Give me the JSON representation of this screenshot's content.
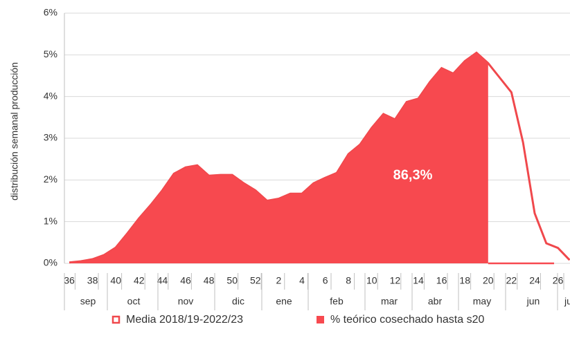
{
  "chart_data": {
    "type": "area",
    "y_label": "distribución semanal producción",
    "categories": [
      "36",
      null,
      "38",
      null,
      "40",
      null,
      "42",
      null,
      "44",
      null,
      "46",
      null,
      "48",
      null,
      "50",
      null,
      "52",
      null,
      "2",
      null,
      "4",
      null,
      "6",
      null,
      "8",
      null,
      "10",
      null,
      "12",
      null,
      "14",
      null,
      "16",
      null,
      "18",
      null,
      "20",
      null,
      "22",
      null,
      "24",
      null,
      "26",
      null
    ],
    "months": [
      "sep",
      "oct",
      "nov",
      "dic",
      "ene",
      "feb",
      "mar",
      "abr",
      "may",
      "jun",
      "jul"
    ],
    "series": [
      {
        "name": "Media 2018/19-2022/23",
        "style": "line",
        "color": "#f0484c",
        "values": [
          0.02,
          0.05,
          0.1,
          0.2,
          0.38,
          0.72,
          1.08,
          1.4,
          1.75,
          2.15,
          2.3,
          2.35,
          2.1,
          2.12,
          2.12,
          1.92,
          1.75,
          1.5,
          1.55,
          1.67,
          1.67,
          1.92,
          2.05,
          2.17,
          2.62,
          2.85,
          3.25,
          3.58,
          3.45,
          3.87,
          3.95,
          4.35,
          4.68,
          4.55,
          4.85,
          5.05,
          4.8,
          4.45,
          4.1,
          2.9,
          1.2,
          0.48,
          0.37,
          0.08
        ]
      },
      {
        "name": "% teórico cosechado hasta s20",
        "style": "area",
        "color": "#f7494f",
        "values": [
          0.02,
          0.05,
          0.1,
          0.2,
          0.38,
          0.72,
          1.08,
          1.4,
          1.75,
          2.15,
          2.3,
          2.35,
          2.1,
          2.12,
          2.12,
          1.92,
          1.75,
          1.5,
          1.55,
          1.67,
          1.67,
          1.92,
          2.05,
          2.17,
          2.62,
          2.85,
          3.25,
          3.58,
          3.45,
          3.87,
          3.95,
          4.35,
          4.68,
          4.55,
          4.85,
          5.05,
          4.8,
          null,
          null,
          null,
          null,
          null,
          null,
          null
        ]
      }
    ],
    "annotation": "86,3%",
    "ylim": [
      0,
      6
    ],
    "yticks": [
      {
        "value": 0,
        "label": "0%"
      },
      {
        "value": 1,
        "label": "1%"
      },
      {
        "value": 2,
        "label": "2%"
      },
      {
        "value": 3,
        "label": "3%"
      },
      {
        "value": 4,
        "label": "4%"
      },
      {
        "value": 5,
        "label": "5%"
      },
      {
        "value": 6,
        "label": "6%"
      }
    ],
    "grid": true,
    "legend": "bottom"
  }
}
